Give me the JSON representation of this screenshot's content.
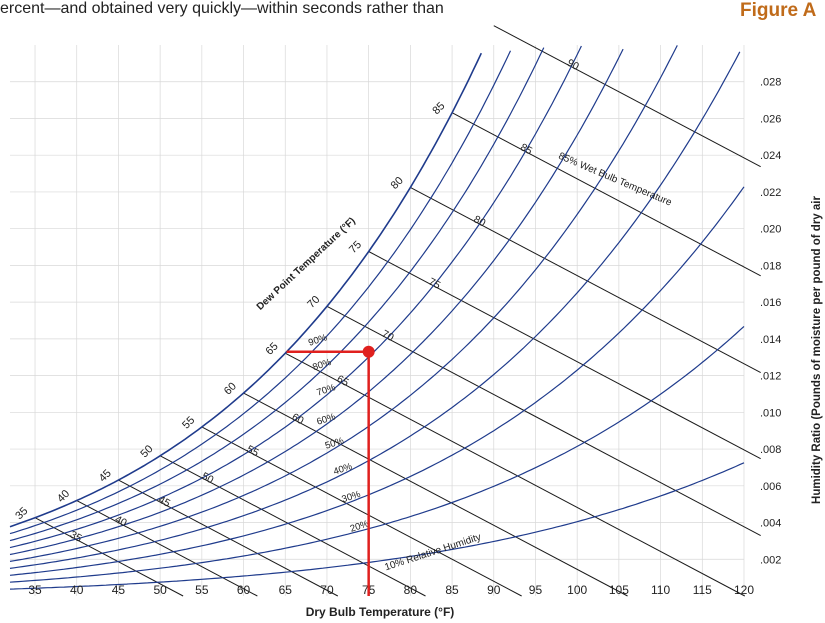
{
  "intro_text": "ercent—and obtained very quickly—within seconds rather than",
  "figure_label": "Figure A",
  "colors": {
    "curve": "#1f3b8c",
    "marker": "#e0201e",
    "grid": "#d8d8d8",
    "label": "#c06b1a"
  },
  "chart_data": {
    "type": "psychrometric",
    "xlabel": "Dry Bulb Temperature (°F)",
    "ylabel": "Humidity Ratio (Pounds of moisture per pound of dry air",
    "xlim": [
      32,
      120
    ],
    "ylim": [
      0,
      0.03
    ],
    "x_ticks": [
      35,
      40,
      45,
      50,
      55,
      60,
      65,
      70,
      75,
      80,
      85,
      90,
      95,
      100,
      105,
      110,
      115,
      120
    ],
    "y_ticks": [
      ".002",
      ".004",
      ".006",
      ".008",
      ".010",
      ".012",
      ".014",
      ".016",
      ".018",
      ".020",
      ".022",
      ".024",
      ".026",
      ".028"
    ],
    "rh_curves": [
      10,
      20,
      30,
      40,
      50,
      60,
      70,
      80,
      90,
      100
    ],
    "rh_labels": [
      {
        "rh": 10,
        "text": "10% Relative Humidity"
      },
      {
        "rh": 20,
        "text": "20%"
      },
      {
        "rh": 30,
        "text": "30%"
      },
      {
        "rh": 40,
        "text": "40%"
      },
      {
        "rh": 50,
        "text": "50%"
      },
      {
        "rh": 60,
        "text": "60%"
      },
      {
        "rh": 70,
        "text": "70%"
      },
      {
        "rh": 80,
        "text": "80%"
      },
      {
        "rh": 90,
        "text": "90%"
      }
    ],
    "wet_bulb_lines": [
      35,
      40,
      45,
      50,
      55,
      60,
      65,
      70,
      75,
      80,
      85,
      90
    ],
    "wet_bulb_label": "85% Wet Bulb Temperature",
    "dew_point_label": "Dew Point Temperature (°F)",
    "dew_point_ticks": [
      35,
      40,
      45,
      50,
      55,
      60,
      65,
      70,
      75,
      80,
      85
    ],
    "marked_point": {
      "dry_bulb": 75,
      "dew_point": 65,
      "humidity_ratio": 0.0133
    }
  }
}
